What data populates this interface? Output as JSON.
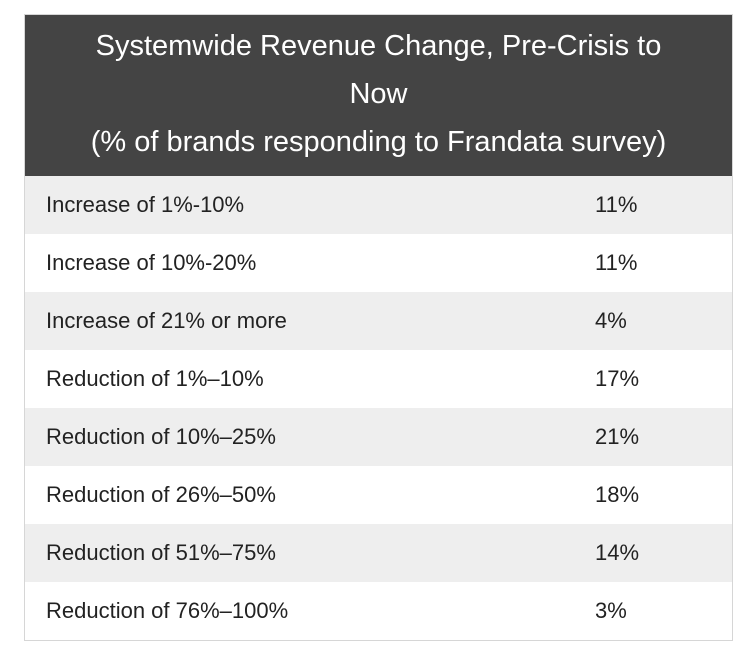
{
  "chart_data": {
    "type": "table",
    "title_lines": [
      "Systemwide Revenue Change, Pre-Crisis to",
      "Now",
      "(% of brands responding to Frandata survey)"
    ],
    "rows": [
      {
        "label": "Increase of 1%-10%",
        "value": "11%"
      },
      {
        "label": "Increase of 10%-20%",
        "value": "11%"
      },
      {
        "label": "Increase of 21% or more",
        "value": "4%"
      },
      {
        "label": "Reduction of 1%–10%",
        "value": "17%"
      },
      {
        "label": "Reduction of 10%–25%",
        "value": "21%"
      },
      {
        "label": "Reduction of 26%–50%",
        "value": "18%"
      },
      {
        "label": "Reduction of 51%–75%",
        "value": "14%"
      },
      {
        "label": "Reduction of 76%–100%",
        "value": "3%"
      }
    ]
  },
  "colors": {
    "header_bg": "#444444",
    "header_text": "#ffffff",
    "row_alt_bg": "#eeeeee",
    "row_bg": "#ffffff",
    "border": "#d6d6d6"
  }
}
